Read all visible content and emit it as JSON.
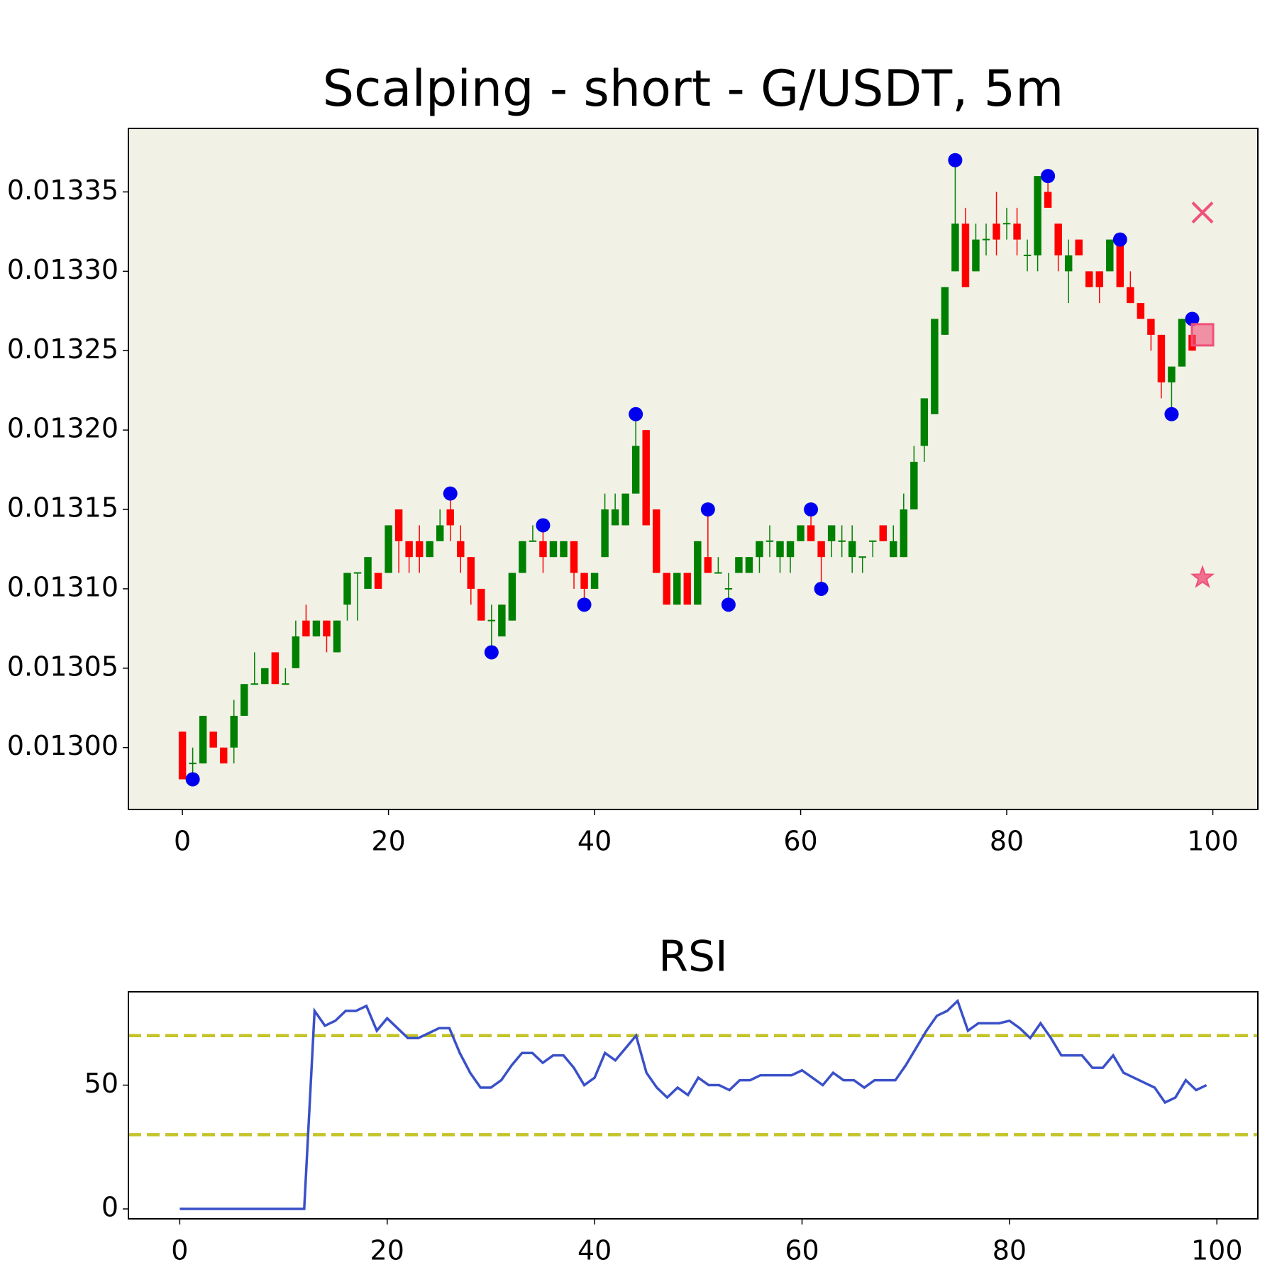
{
  "chart_data": [
    {
      "type": "candlestick",
      "title": "Scalping - short - G/USDT, 5m",
      "x": [
        0,
        1,
        2,
        3,
        4,
        5,
        6,
        7,
        8,
        9,
        10,
        11,
        12,
        13,
        14,
        15,
        16,
        17,
        18,
        19,
        20,
        21,
        22,
        23,
        24,
        25,
        26,
        27,
        28,
        29,
        30,
        31,
        32,
        33,
        34,
        35,
        36,
        37,
        38,
        39,
        40,
        41,
        42,
        43,
        44,
        45,
        46,
        47,
        48,
        49,
        50,
        51,
        52,
        53,
        54,
        55,
        56,
        57,
        58,
        59,
        60,
        61,
        62,
        63,
        64,
        65,
        66,
        67,
        68,
        69,
        70,
        71,
        72,
        73,
        74,
        75,
        76,
        77,
        78,
        79,
        80,
        81,
        82,
        83,
        84,
        85,
        86,
        87,
        88,
        89,
        90,
        91,
        92,
        93,
        94,
        95,
        96,
        97,
        98
      ],
      "open": [
        0.01301,
        0.01299,
        0.01299,
        0.01301,
        0.013,
        0.013,
        0.01302,
        0.01304,
        0.01304,
        0.01306,
        0.01304,
        0.01305,
        0.01308,
        0.01307,
        0.01308,
        0.01306,
        0.01309,
        0.01311,
        0.0131,
        0.01311,
        0.01311,
        0.01315,
        0.01313,
        0.01313,
        0.01312,
        0.01313,
        0.01315,
        0.01313,
        0.01312,
        0.0131,
        0.01308,
        0.01307,
        0.01308,
        0.01311,
        0.01313,
        0.01313,
        0.01312,
        0.01312,
        0.01313,
        0.01311,
        0.0131,
        0.01312,
        0.01314,
        0.01314,
        0.01316,
        0.0132,
        0.01315,
        0.01311,
        0.01309,
        0.01311,
        0.01309,
        0.01312,
        0.01311,
        0.0131,
        0.01311,
        0.01311,
        0.01312,
        0.01313,
        0.01312,
        0.01312,
        0.01313,
        0.01314,
        0.01313,
        0.01313,
        0.01313,
        0.01312,
        0.01312,
        0.01313,
        0.01314,
        0.01312,
        0.01312,
        0.01315,
        0.01319,
        0.01321,
        0.01326,
        0.0133,
        0.01333,
        0.0133,
        0.01332,
        0.01333,
        0.01333,
        0.01333,
        0.01331,
        0.01331,
        0.01335,
        0.01333,
        0.0133,
        0.01332,
        0.0133,
        0.0133,
        0.0133,
        0.01332,
        0.01329,
        0.01328,
        0.01327,
        0.01326,
        0.01323,
        0.01324,
        0.01326
      ],
      "high": [
        0.01301,
        0.013,
        0.01302,
        0.01301,
        0.013,
        0.01303,
        0.01304,
        0.01306,
        0.01305,
        0.01306,
        0.01305,
        0.01308,
        0.01309,
        0.01308,
        0.01308,
        0.01308,
        0.01311,
        0.01311,
        0.01312,
        0.01311,
        0.01314,
        0.01315,
        0.01313,
        0.01314,
        0.01313,
        0.01315,
        0.01316,
        0.01314,
        0.01312,
        0.0131,
        0.01309,
        0.01309,
        0.01311,
        0.01313,
        0.01314,
        0.01314,
        0.01313,
        0.01313,
        0.01313,
        0.01311,
        0.01311,
        0.01316,
        0.01316,
        0.01316,
        0.01321,
        0.0132,
        0.01315,
        0.01311,
        0.01311,
        0.01311,
        0.01313,
        0.01315,
        0.01312,
        0.01311,
        0.01312,
        0.01312,
        0.01313,
        0.01314,
        0.01313,
        0.01313,
        0.01314,
        0.01315,
        0.01313,
        0.01314,
        0.01314,
        0.01314,
        0.01312,
        0.01313,
        0.01314,
        0.01314,
        0.01316,
        0.01319,
        0.01322,
        0.01327,
        0.01329,
        0.01337,
        0.01334,
        0.01333,
        0.01333,
        0.01335,
        0.01334,
        0.01334,
        0.01332,
        0.01336,
        0.01336,
        0.01333,
        0.01332,
        0.01332,
        0.0133,
        0.0133,
        0.01332,
        0.01332,
        0.0133,
        0.01328,
        0.01327,
        0.01326,
        0.01324,
        0.01327,
        0.01327
      ],
      "low": [
        0.01298,
        0.01298,
        0.01299,
        0.013,
        0.01299,
        0.01299,
        0.01302,
        0.01304,
        0.01304,
        0.01304,
        0.01304,
        0.01305,
        0.01307,
        0.01307,
        0.01306,
        0.01306,
        0.01308,
        0.01308,
        0.0131,
        0.0131,
        0.01311,
        0.01311,
        0.01311,
        0.01311,
        0.01312,
        0.01313,
        0.01313,
        0.01311,
        0.01309,
        0.01308,
        0.01306,
        0.01307,
        0.01308,
        0.01311,
        0.01313,
        0.01311,
        0.01312,
        0.01312,
        0.0131,
        0.01309,
        0.0131,
        0.01312,
        0.01314,
        0.01314,
        0.01316,
        0.01314,
        0.01311,
        0.01309,
        0.01309,
        0.01309,
        0.01309,
        0.01311,
        0.01311,
        0.01309,
        0.01311,
        0.01311,
        0.01311,
        0.01312,
        0.01311,
        0.01311,
        0.01313,
        0.01313,
        0.0131,
        0.01312,
        0.01312,
        0.01311,
        0.01311,
        0.01312,
        0.01313,
        0.01312,
        0.01312,
        0.01315,
        0.01318,
        0.01321,
        0.01326,
        0.0133,
        0.01329,
        0.0133,
        0.01331,
        0.01331,
        0.01332,
        0.01331,
        0.0133,
        0.0133,
        0.01334,
        0.0133,
        0.01328,
        0.01331,
        0.01329,
        0.01328,
        0.0133,
        0.01329,
        0.01328,
        0.01327,
        0.01325,
        0.01322,
        0.01321,
        0.01324,
        0.01325
      ],
      "close": [
        0.01298,
        0.01299,
        0.01302,
        0.013,
        0.01299,
        0.01302,
        0.01304,
        0.01304,
        0.01305,
        0.01304,
        0.01304,
        0.01307,
        0.01307,
        0.01308,
        0.01307,
        0.01308,
        0.01311,
        0.01311,
        0.01312,
        0.0131,
        0.01314,
        0.01313,
        0.01312,
        0.01312,
        0.01313,
        0.01314,
        0.01314,
        0.01312,
        0.0131,
        0.01308,
        0.01308,
        0.01309,
        0.01311,
        0.01313,
        0.01313,
        0.01312,
        0.01313,
        0.01313,
        0.01311,
        0.0131,
        0.01311,
        0.01315,
        0.01315,
        0.01316,
        0.01319,
        0.01314,
        0.01311,
        0.01309,
        0.01311,
        0.01309,
        0.01313,
        0.01311,
        0.01311,
        0.0131,
        0.01312,
        0.01312,
        0.01313,
        0.01313,
        0.01313,
        0.01313,
        0.01314,
        0.01313,
        0.01312,
        0.01314,
        0.01313,
        0.01313,
        0.01312,
        0.01313,
        0.01313,
        0.01313,
        0.01315,
        0.01318,
        0.01322,
        0.01327,
        0.01329,
        0.01333,
        0.01329,
        0.01332,
        0.01332,
        0.01332,
        0.01333,
        0.01332,
        0.01331,
        0.01336,
        0.01334,
        0.01331,
        0.01331,
        0.01331,
        0.01329,
        0.01329,
        0.01332,
        0.01329,
        0.01328,
        0.01327,
        0.01326,
        0.01323,
        0.01324,
        0.01327,
        0.01325
      ],
      "up_color": "#008000",
      "down_color": "#ff0000",
      "pivots": {
        "color": "#0000ee",
        "x": [
          1,
          26,
          30,
          35,
          39,
          44,
          51,
          53,
          61,
          62,
          75,
          84,
          91,
          96,
          98
        ],
        "y": [
          0.01298,
          0.01316,
          0.01306,
          0.01314,
          0.01309,
          0.01321,
          0.01315,
          0.01309,
          0.01315,
          0.0131,
          0.01337,
          0.01336,
          0.01332,
          0.01321,
          0.01327
        ]
      },
      "markers": [
        {
          "shape": "x",
          "x": 99,
          "y": 0.013337,
          "color": "#f0507a"
        },
        {
          "shape": "square",
          "x": 99,
          "y": 0.01326,
          "color": "#f0507a"
        },
        {
          "shape": "star",
          "x": 99,
          "y": 0.013107,
          "color": "#f0507a"
        }
      ],
      "xlim": [
        -5.24,
        104.37
      ],
      "ylim": [
        0.012961,
        0.01339
      ],
      "xticks": [
        0,
        20,
        40,
        60,
        80,
        100
      ],
      "yticks": [
        {
          "value": 0.013,
          "label": "0.01300"
        },
        0.01305,
        {
          "value": 0.0131,
          "label": "0.01310"
        },
        0.01315,
        {
          "value": 0.0132,
          "label": "0.01320"
        },
        0.01325,
        {
          "value": 0.0133,
          "label": "0.01330"
        },
        0.01335
      ],
      "background": "#f1f1e6"
    },
    {
      "type": "line",
      "title": "RSI",
      "x": [
        0,
        1,
        2,
        3,
        4,
        5,
        6,
        7,
        8,
        9,
        10,
        11,
        12,
        13,
        14,
        15,
        16,
        17,
        18,
        19,
        20,
        21,
        22,
        23,
        24,
        25,
        26,
        27,
        28,
        29,
        30,
        31,
        32,
        33,
        34,
        35,
        36,
        37,
        38,
        39,
        40,
        41,
        42,
        43,
        44,
        45,
        46,
        47,
        48,
        49,
        50,
        51,
        52,
        53,
        54,
        55,
        56,
        57,
        58,
        59,
        60,
        61,
        62,
        63,
        64,
        65,
        66,
        67,
        68,
        69,
        70,
        71,
        72,
        73,
        74,
        75,
        76,
        77,
        78,
        79,
        80,
        81,
        82,
        83,
        84,
        85,
        86,
        87,
        88,
        89,
        90,
        91,
        92,
        93,
        94,
        95,
        96,
        97,
        98,
        99
      ],
      "values": [
        0,
        0,
        0,
        0,
        0,
        0,
        0,
        0,
        0,
        0,
        0,
        0,
        0,
        80,
        74,
        76,
        80,
        80,
        82,
        72,
        77,
        73,
        69,
        69,
        71,
        73,
        73,
        63,
        55,
        49,
        49,
        52,
        58,
        63,
        63,
        59,
        62,
        62,
        57,
        50,
        53,
        63,
        60,
        65,
        70,
        55,
        49,
        45,
        49,
        46,
        53,
        50,
        50,
        48,
        52,
        52,
        54,
        54,
        54,
        54,
        56,
        53,
        50,
        55,
        52,
        52,
        49,
        52,
        52,
        52,
        58,
        65,
        72,
        78,
        80,
        84,
        72,
        75,
        75,
        75,
        76,
        73,
        69,
        75,
        69,
        62,
        62,
        62,
        57,
        57,
        62,
        55,
        53,
        51,
        49,
        43,
        45,
        52,
        48,
        50
      ],
      "color": "#3a50c8",
      "hlines": [
        {
          "value": 70,
          "color": "#c4c428"
        },
        {
          "value": 30,
          "color": "#c4c428"
        }
      ],
      "xlim": [
        -4.95,
        103.95
      ],
      "ylim": [
        -4,
        87.7
      ],
      "xticks": [
        0,
        20,
        40,
        60,
        80,
        100
      ],
      "yticks": [
        0,
        50
      ],
      "background": "#ffffff"
    }
  ]
}
